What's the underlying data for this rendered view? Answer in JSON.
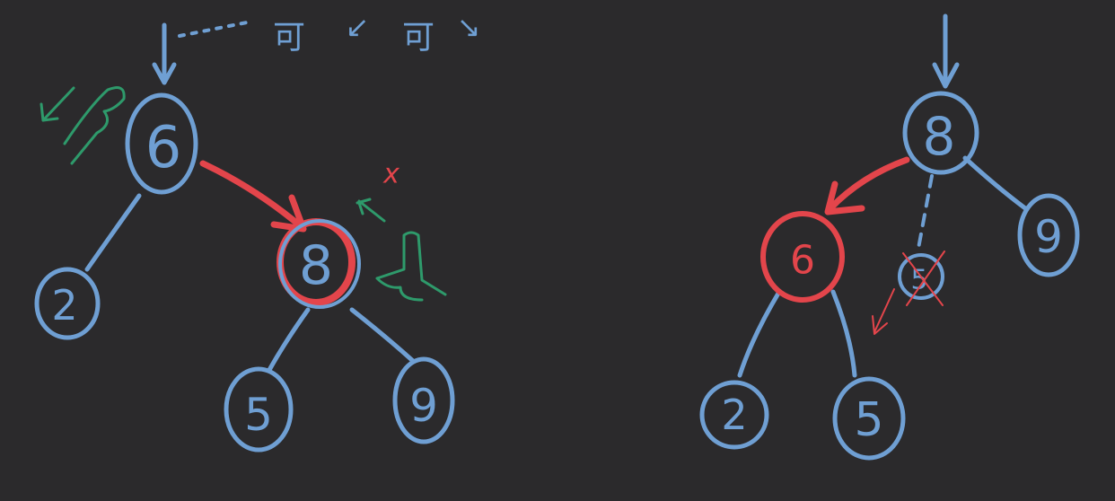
{
  "colors": {
    "background": "#2b2a2c",
    "tree_ink": "#6f9fd3",
    "highlight": "#e3454b",
    "annotation": "#2e9a6b"
  },
  "top_note": {
    "glyph": "可",
    "arrow_left": "↙",
    "arrow_right": "↘"
  },
  "left_tree": {
    "nodes": [
      {
        "id": "n6",
        "label": "6"
      },
      {
        "id": "n2",
        "label": "2"
      },
      {
        "id": "n8",
        "label": "8",
        "highlighted": true
      },
      {
        "id": "n5",
        "label": "5"
      },
      {
        "id": "n9",
        "label": "9"
      }
    ],
    "annotation": "x"
  },
  "right_tree": {
    "nodes": [
      {
        "id": "m8",
        "label": "8"
      },
      {
        "id": "m6",
        "label": "6",
        "highlighted": true
      },
      {
        "id": "m9",
        "label": "9"
      },
      {
        "id": "m5small",
        "label": "5",
        "crossed": true
      },
      {
        "id": "m2",
        "label": "2"
      },
      {
        "id": "m5",
        "label": "5"
      }
    ]
  }
}
